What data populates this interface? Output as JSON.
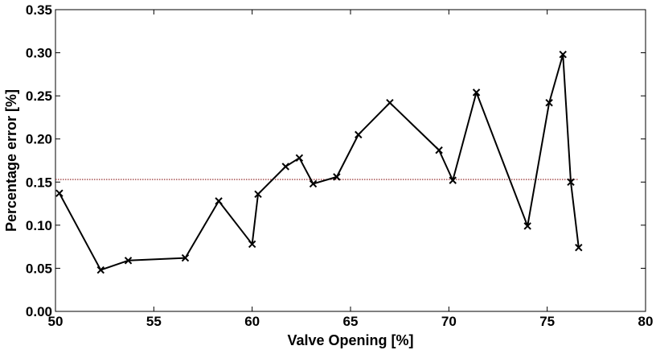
{
  "chart_data": {
    "type": "line",
    "title": "",
    "xlabel": "Valve Opening [%]",
    "ylabel": "Percentage error [%]",
    "xlim": [
      50,
      80
    ],
    "ylim": [
      0,
      0.35
    ],
    "x_ticks": [
      "50",
      "55",
      "60",
      "65",
      "70",
      "75",
      "80"
    ],
    "y_ticks": [
      "0.00",
      "0.05",
      "0.10",
      "0.15",
      "0.20",
      "0.25",
      "0.30",
      "0.35"
    ],
    "grid": false,
    "legend": "none",
    "series": [
      {
        "marker": "x",
        "color": "#000000",
        "x": [
          50.2,
          52.3,
          53.7,
          56.6,
          58.3,
          60.0,
          60.3,
          61.7,
          62.4,
          63.1,
          64.3,
          65.4,
          67.0,
          69.5,
          70.2,
          71.4,
          74.0,
          75.1,
          75.8,
          76.2,
          76.6
        ],
        "y": [
          0.137,
          0.048,
          0.059,
          0.062,
          0.128,
          0.078,
          0.136,
          0.168,
          0.178,
          0.148,
          0.156,
          0.205,
          0.242,
          0.187,
          0.152,
          0.254,
          0.099,
          0.242,
          0.298,
          0.15,
          0.074
        ]
      }
    ],
    "reference_line": {
      "y": 0.153,
      "x_start": 50,
      "x_end": 76.6,
      "color": "#8b1a1a",
      "style": "dotted"
    }
  }
}
